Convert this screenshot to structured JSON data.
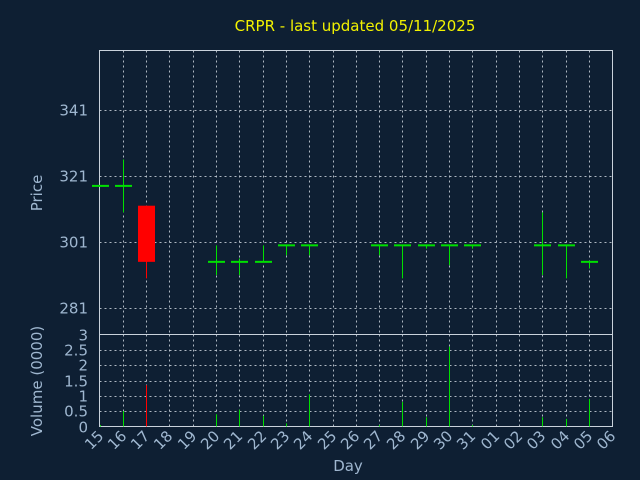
{
  "chart_data": {
    "type": "candlestick",
    "title": "CRPR - last updated 05/11/2025",
    "xlabel": "Day",
    "price_ylabel": "Price",
    "volume_ylabel": "Volume (0000)",
    "x_tick_labels": [
      "15",
      "16",
      "17",
      "18",
      "19",
      "20",
      "21",
      "22",
      "23",
      "24",
      "25",
      "26",
      "27",
      "28",
      "29",
      "30",
      "31",
      "01",
      "02",
      "03",
      "04",
      "05",
      "06"
    ],
    "price_ticks": [
      281,
      301,
      321,
      341
    ],
    "price_ylim": [
      273,
      359
    ],
    "volume_ticks": [
      0,
      0.5,
      1,
      1.5,
      2,
      2.5,
      3
    ],
    "volume_tick_labels": [
      "0",
      "0.5",
      "1",
      "1.5",
      "2",
      "2.5",
      "3"
    ],
    "volume_ylim": [
      0,
      3
    ],
    "colors": {
      "up": "#00e000",
      "down": "#ff0000",
      "title": "#f2f200"
    },
    "grid": true,
    "candles": [
      {
        "x": "15",
        "open": 318,
        "high": 318,
        "low": 318,
        "close": 318,
        "volume": 0.05
      },
      {
        "x": "16",
        "open": 318,
        "high": 326,
        "low": 310,
        "close": 318,
        "volume": 0.5
      },
      {
        "x": "17",
        "open": 312,
        "high": 312,
        "low": 290,
        "close": 295,
        "volume": 1.35
      },
      {
        "x": "20",
        "open": 295,
        "high": 300,
        "low": 291,
        "close": 295,
        "volume": 0.4
      },
      {
        "x": "21",
        "open": 295,
        "high": 296,
        "low": 291,
        "close": 295,
        "volume": 0.55
      },
      {
        "x": "22",
        "open": 295,
        "high": 300,
        "low": 295,
        "close": 295,
        "volume": 0.35
      },
      {
        "x": "23",
        "open": 300,
        "high": 300,
        "low": 297,
        "close": 300,
        "volume": 0.1
      },
      {
        "x": "24",
        "open": 300,
        "high": 300,
        "low": 297,
        "close": 300,
        "volume": 1.05
      },
      {
        "x": "27",
        "open": 300,
        "high": 300,
        "low": 297,
        "close": 300,
        "volume": 0.05
      },
      {
        "x": "28",
        "open": 300,
        "high": 300,
        "low": 290,
        "close": 300,
        "volume": 0.8
      },
      {
        "x": "29",
        "open": 300,
        "high": 300,
        "low": 299,
        "close": 300,
        "volume": 0.3
      },
      {
        "x": "30",
        "open": 300,
        "high": 300,
        "low": 294,
        "close": 300,
        "volume": 2.6
      },
      {
        "x": "31",
        "open": 300,
        "high": 300,
        "low": 299,
        "close": 300,
        "volume": 0.05
      },
      {
        "x": "03",
        "open": 300,
        "high": 310,
        "low": 291,
        "close": 300,
        "volume": 0.3
      },
      {
        "x": "04",
        "open": 300,
        "high": 300,
        "low": 290,
        "close": 300,
        "volume": 0.25
      },
      {
        "x": "05",
        "open": 295,
        "high": 295,
        "low": 293,
        "close": 295,
        "volume": 0.9
      }
    ]
  }
}
